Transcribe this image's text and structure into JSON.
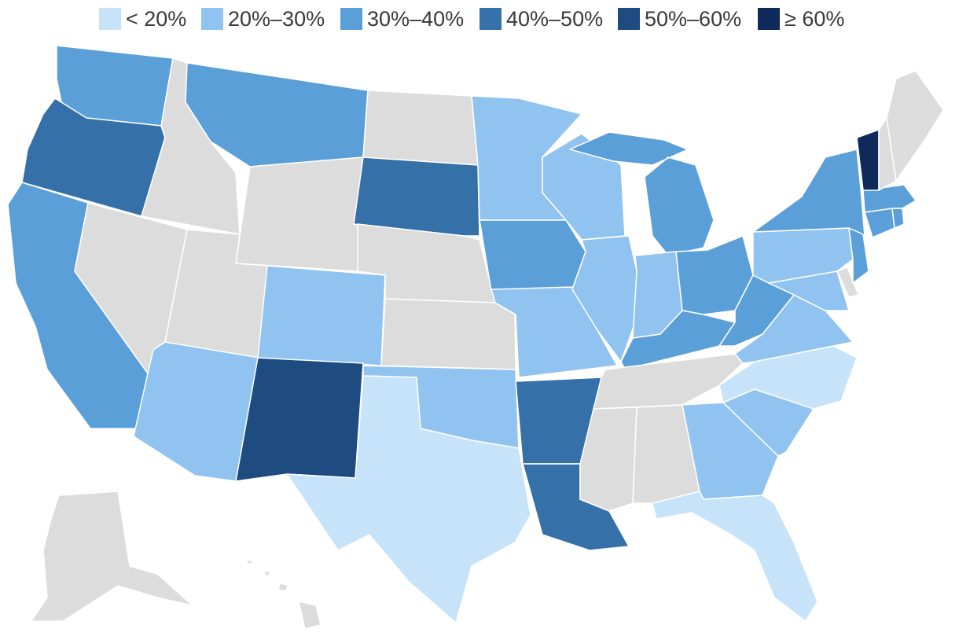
{
  "legend": [
    {
      "label": "< 20%",
      "color": "#c6e3f9"
    },
    {
      "label": "20%–30%",
      "color": "#90c3f0"
    },
    {
      "label": "30%–40%",
      "color": "#5b9fd9"
    },
    {
      "label": "40%–50%",
      "color": "#3570a8"
    },
    {
      "label": "50%–60%",
      "color": "#1e4b80"
    },
    {
      "label": "≥ 60%",
      "color": "#0d2a5a"
    }
  ],
  "no_data_color": "#dcdcdc",
  "states": [
    {
      "code": "WA",
      "bin": 2
    },
    {
      "code": "OR",
      "bin": 3
    },
    {
      "code": "CA",
      "bin": 2
    },
    {
      "code": "ID",
      "bin": null
    },
    {
      "code": "NV",
      "bin": null
    },
    {
      "code": "MT",
      "bin": 2
    },
    {
      "code": "WY",
      "bin": null
    },
    {
      "code": "UT",
      "bin": null
    },
    {
      "code": "AZ",
      "bin": 1
    },
    {
      "code": "CO",
      "bin": 1
    },
    {
      "code": "NM",
      "bin": 4
    },
    {
      "code": "ND",
      "bin": null
    },
    {
      "code": "SD",
      "bin": 3
    },
    {
      "code": "NE",
      "bin": null
    },
    {
      "code": "KS",
      "bin": null
    },
    {
      "code": "OK",
      "bin": 1
    },
    {
      "code": "TX",
      "bin": 0
    },
    {
      "code": "MN",
      "bin": 1
    },
    {
      "code": "IA",
      "bin": 2
    },
    {
      "code": "MO",
      "bin": 1
    },
    {
      "code": "AR",
      "bin": 3
    },
    {
      "code": "LA",
      "bin": 3
    },
    {
      "code": "WI",
      "bin": 1
    },
    {
      "code": "IL",
      "bin": 1
    },
    {
      "code": "MI",
      "bin": 2
    },
    {
      "code": "IN",
      "bin": 1
    },
    {
      "code": "OH",
      "bin": 2
    },
    {
      "code": "KY",
      "bin": 2
    },
    {
      "code": "TN",
      "bin": null
    },
    {
      "code": "MS",
      "bin": null
    },
    {
      "code": "AL",
      "bin": null
    },
    {
      "code": "GA",
      "bin": 1
    },
    {
      "code": "FL",
      "bin": 0
    },
    {
      "code": "SC",
      "bin": 1
    },
    {
      "code": "NC",
      "bin": 0
    },
    {
      "code": "VA",
      "bin": 1
    },
    {
      "code": "WV",
      "bin": 2
    },
    {
      "code": "MD",
      "bin": 1
    },
    {
      "code": "DE",
      "bin": null
    },
    {
      "code": "PA",
      "bin": 1
    },
    {
      "code": "NJ",
      "bin": 2
    },
    {
      "code": "NY",
      "bin": 2
    },
    {
      "code": "CT",
      "bin": 2
    },
    {
      "code": "RI",
      "bin": 2
    },
    {
      "code": "MA",
      "bin": 2
    },
    {
      "code": "VT",
      "bin": 5
    },
    {
      "code": "NH",
      "bin": null
    },
    {
      "code": "ME",
      "bin": null
    },
    {
      "code": "AK",
      "bin": null
    },
    {
      "code": "HI",
      "bin": null
    }
  ]
}
